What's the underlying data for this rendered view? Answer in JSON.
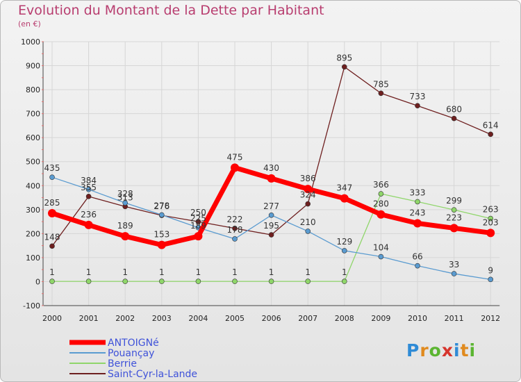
{
  "title": "Evolution du Montant de la Dette par Habitant",
  "subtitle": "(en €)",
  "logo": "Proxiti",
  "chart_data": {
    "type": "line",
    "title": "Evolution du Montant de la Dette par Habitant",
    "ylabel": "(en €)",
    "xlabel": "",
    "ylim": [
      -100,
      1000
    ],
    "yticks": [
      -100,
      0,
      100,
      200,
      300,
      400,
      500,
      600,
      700,
      800,
      900,
      1000
    ],
    "categories": [
      "2000",
      "2001",
      "2002",
      "2003",
      "2004",
      "2005",
      "2006",
      "2007",
      "2008",
      "2009",
      "2010",
      "2011",
      "2012"
    ],
    "grid": true,
    "legend_position": "bottom-left",
    "series": [
      {
        "name": "Saint-Cyr-la-Lande",
        "color": "#6e1f1f",
        "values": [
          148,
          355,
          313,
          276,
          250,
          222,
          195,
          324,
          895,
          785,
          733,
          680,
          614
        ]
      },
      {
        "name": "Berrie",
        "color": "#8fd66a",
        "values": [
          1,
          1,
          1,
          1,
          1,
          1,
          1,
          1,
          1,
          366,
          333,
          299,
          263
        ]
      },
      {
        "name": "Pouançay",
        "color": "#5a9bd0",
        "values": [
          435,
          384,
          328,
          278,
          225,
          178,
          277,
          210,
          129,
          104,
          66,
          33,
          9
        ]
      },
      {
        "name": "ANTOIGNé",
        "color": "#ff0000",
        "values": [
          285,
          236,
          189,
          153,
          189,
          475,
          430,
          386,
          347,
          280,
          243,
          223,
          203
        ]
      }
    ]
  }
}
